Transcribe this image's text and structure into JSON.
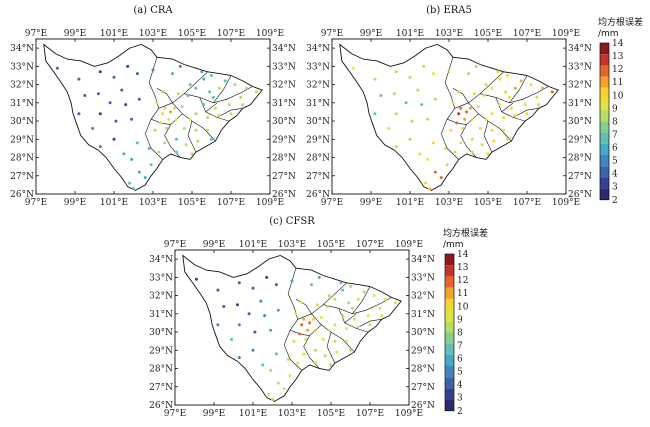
{
  "panels": [
    {
      "id": "cra",
      "title": "(a) CRA"
    },
    {
      "id": "era5",
      "title": "(b) ERA5"
    },
    {
      "id": "cfsr",
      "title": "(c) CFSR"
    }
  ],
  "axes": {
    "lon_ticks": [
      "97°E",
      "99°E",
      "101°E",
      "103°E",
      "105°E",
      "107°E",
      "109°E"
    ],
    "lat_ticks": [
      "34°N",
      "33°N",
      "32°N",
      "31°N",
      "30°N",
      "29°N",
      "28°N",
      "27°N",
      "26°N"
    ],
    "lon_range": [
      97,
      109
    ],
    "lat_range": [
      26,
      34.5
    ]
  },
  "colorbar": {
    "title": "均方根误差",
    "unit": "/mm",
    "ticks": [
      "14",
      "13",
      "12",
      "11",
      "10",
      "9",
      "8",
      "7",
      "6",
      "5",
      "4",
      "3",
      "2"
    ],
    "range": [
      2,
      14
    ],
    "colors": [
      "#2b2a6e",
      "#36408f",
      "#3e63ad",
      "#3f86c2",
      "#45a9c7",
      "#5fc1b0",
      "#86cf8a",
      "#b6dc62",
      "#e0e442",
      "#f6d32f",
      "#f4a12a",
      "#e8652a",
      "#c8322a",
      "#8a1c1f"
    ]
  },
  "legend_colors": {
    "low": "#2b2a6e",
    "mid": "#e0e442",
    "high": "#8a1c1f"
  }
}
